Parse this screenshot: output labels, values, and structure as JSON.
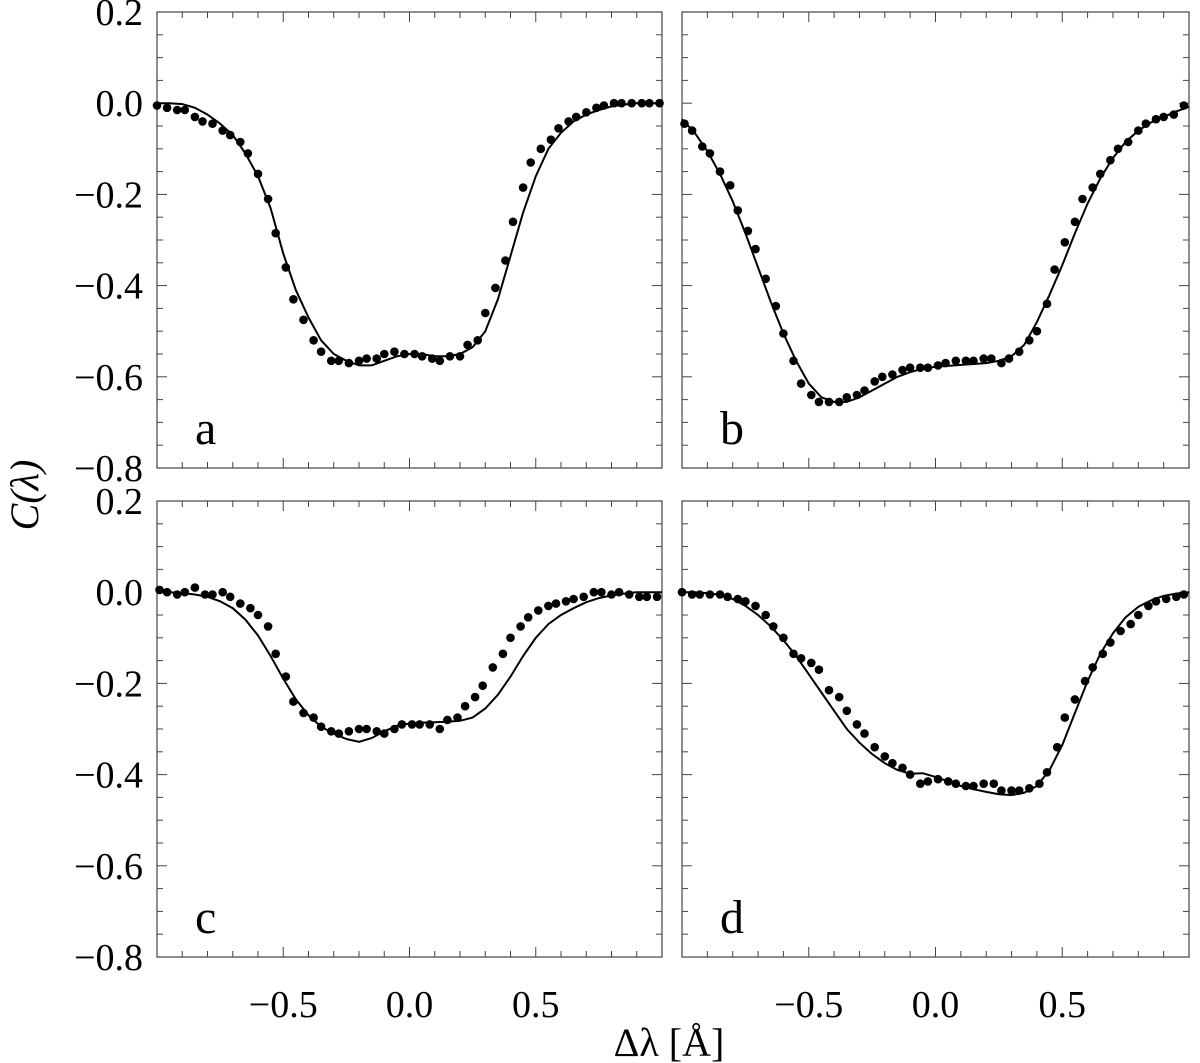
{
  "chart_data": {
    "type": "scatter",
    "xlabel": "Δλ [Å]",
    "ylabel": "C(λ)",
    "xlim": [
      -1.0,
      1.0
    ],
    "ylim": [
      -0.8,
      0.2
    ],
    "xticks": [
      {
        "value": -0.5,
        "label": "−0.5"
      },
      {
        "value": 0.0,
        "label": "0.0"
      },
      {
        "value": 0.5,
        "label": "0.5"
      }
    ],
    "yticks": [
      {
        "value": 0.2,
        "label": "0.2"
      },
      {
        "value": 0.0,
        "label": "0.0"
      },
      {
        "value": -0.2,
        "label": "−0.2"
      },
      {
        "value": -0.4,
        "label": "−0.4"
      },
      {
        "value": -0.6,
        "label": "−0.6"
      },
      {
        "value": -0.8,
        "label": "−0.8"
      }
    ],
    "grid": false,
    "legend": "none",
    "panels": [
      {
        "label": "a",
        "position": "top-left",
        "points": {
          "x": [
            -1.0,
            -0.96,
            -0.92,
            -0.89,
            -0.85,
            -0.82,
            -0.78,
            -0.74,
            -0.71,
            -0.67,
            -0.64,
            -0.6,
            -0.56,
            -0.53,
            -0.49,
            -0.46,
            -0.42,
            -0.38,
            -0.35,
            -0.31,
            -0.28,
            -0.24,
            -0.2,
            -0.17,
            -0.13,
            -0.1,
            -0.06,
            -0.02,
            0.02,
            0.05,
            0.09,
            0.12,
            0.16,
            0.2,
            0.23,
            0.27,
            0.3,
            0.34,
            0.38,
            0.41,
            0.45,
            0.48,
            0.52,
            0.56,
            0.59,
            0.63,
            0.66,
            0.7,
            0.74,
            0.77,
            0.81,
            0.84,
            0.88,
            0.92,
            0.95,
            0.99
          ],
          "y": [
            -0.005,
            -0.01,
            -0.015,
            -0.015,
            -0.03,
            -0.04,
            -0.045,
            -0.06,
            -0.07,
            -0.085,
            -0.11,
            -0.155,
            -0.21,
            -0.285,
            -0.36,
            -0.43,
            -0.475,
            -0.52,
            -0.545,
            -0.565,
            -0.565,
            -0.57,
            -0.565,
            -0.56,
            -0.56,
            -0.55,
            -0.545,
            -0.55,
            -0.55,
            -0.555,
            -0.56,
            -0.565,
            -0.555,
            -0.555,
            -0.53,
            -0.52,
            -0.46,
            -0.405,
            -0.345,
            -0.26,
            -0.185,
            -0.13,
            -0.1,
            -0.08,
            -0.055,
            -0.04,
            -0.03,
            -0.02,
            -0.01,
            -0.005,
            0.0,
            0.0,
            0.0,
            0.0,
            0.0,
            0.0
          ]
        },
        "curve": {
          "x": [
            -1.0,
            -0.95,
            -0.9,
            -0.85,
            -0.8,
            -0.75,
            -0.7,
            -0.65,
            -0.6,
            -0.55,
            -0.5,
            -0.45,
            -0.4,
            -0.35,
            -0.3,
            -0.25,
            -0.2,
            -0.15,
            -0.1,
            -0.05,
            0.0,
            0.05,
            0.1,
            0.15,
            0.2,
            0.25,
            0.3,
            0.35,
            0.4,
            0.45,
            0.5,
            0.55,
            0.6,
            0.65,
            0.7,
            0.75,
            0.8,
            0.85,
            0.9,
            0.95,
            1.0
          ],
          "y": [
            0.0,
            0.0,
            -0.002,
            -0.01,
            -0.025,
            -0.045,
            -0.07,
            -0.11,
            -0.16,
            -0.23,
            -0.33,
            -0.41,
            -0.47,
            -0.52,
            -0.55,
            -0.565,
            -0.575,
            -0.575,
            -0.565,
            -0.555,
            -0.55,
            -0.55,
            -0.555,
            -0.555,
            -0.55,
            -0.535,
            -0.5,
            -0.43,
            -0.335,
            -0.24,
            -0.16,
            -0.1,
            -0.065,
            -0.04,
            -0.025,
            -0.015,
            -0.007,
            -0.003,
            0.0,
            0.0,
            0.0
          ]
        }
      },
      {
        "label": "b",
        "position": "top-right",
        "points": {
          "x": [
            -0.99,
            -0.96,
            -0.92,
            -0.89,
            -0.85,
            -0.81,
            -0.78,
            -0.74,
            -0.71,
            -0.67,
            -0.63,
            -0.6,
            -0.56,
            -0.53,
            -0.49,
            -0.46,
            -0.42,
            -0.38,
            -0.35,
            -0.31,
            -0.28,
            -0.24,
            -0.21,
            -0.17,
            -0.13,
            -0.1,
            -0.06,
            -0.03,
            0.01,
            0.04,
            0.08,
            0.12,
            0.15,
            0.19,
            0.22,
            0.26,
            0.29,
            0.33,
            0.37,
            0.4,
            0.44,
            0.47,
            0.51,
            0.55,
            0.58,
            0.62,
            0.65,
            0.69,
            0.72,
            0.76,
            0.8,
            0.83,
            0.87,
            0.9,
            0.94,
            0.98
          ],
          "y": [
            -0.045,
            -0.06,
            -0.095,
            -0.11,
            -0.15,
            -0.18,
            -0.235,
            -0.28,
            -0.32,
            -0.385,
            -0.445,
            -0.505,
            -0.565,
            -0.615,
            -0.64,
            -0.655,
            -0.655,
            -0.655,
            -0.645,
            -0.64,
            -0.63,
            -0.61,
            -0.6,
            -0.595,
            -0.585,
            -0.58,
            -0.58,
            -0.58,
            -0.575,
            -0.57,
            -0.565,
            -0.565,
            -0.565,
            -0.56,
            -0.56,
            -0.57,
            -0.56,
            -0.545,
            -0.52,
            -0.5,
            -0.44,
            -0.365,
            -0.305,
            -0.26,
            -0.21,
            -0.185,
            -0.155,
            -0.125,
            -0.1,
            -0.085,
            -0.06,
            -0.045,
            -0.035,
            -0.03,
            -0.025,
            -0.005
          ]
        },
        "curve": {
          "x": [
            -1.0,
            -0.95,
            -0.9,
            -0.85,
            -0.8,
            -0.75,
            -0.7,
            -0.65,
            -0.6,
            -0.55,
            -0.5,
            -0.45,
            -0.4,
            -0.35,
            -0.3,
            -0.25,
            -0.2,
            -0.15,
            -0.1,
            -0.05,
            0.0,
            0.05,
            0.1,
            0.15,
            0.2,
            0.25,
            0.3,
            0.35,
            0.4,
            0.45,
            0.5,
            0.55,
            0.6,
            0.65,
            0.7,
            0.75,
            0.8,
            0.85,
            0.9,
            0.95,
            1.0
          ],
          "y": [
            -0.035,
            -0.065,
            -0.105,
            -0.155,
            -0.215,
            -0.285,
            -0.36,
            -0.435,
            -0.505,
            -0.565,
            -0.615,
            -0.645,
            -0.655,
            -0.655,
            -0.645,
            -0.63,
            -0.615,
            -0.6,
            -0.59,
            -0.582,
            -0.578,
            -0.576,
            -0.574,
            -0.572,
            -0.57,
            -0.565,
            -0.555,
            -0.53,
            -0.48,
            -0.42,
            -0.355,
            -0.285,
            -0.22,
            -0.165,
            -0.12,
            -0.085,
            -0.06,
            -0.042,
            -0.03,
            -0.018,
            -0.008
          ]
        }
      },
      {
        "label": "c",
        "position": "bottom-left",
        "points": {
          "x": [
            -0.99,
            -0.96,
            -0.92,
            -0.89,
            -0.85,
            -0.81,
            -0.78,
            -0.74,
            -0.71,
            -0.67,
            -0.63,
            -0.6,
            -0.56,
            -0.53,
            -0.49,
            -0.46,
            -0.42,
            -0.38,
            -0.35,
            -0.31,
            -0.28,
            -0.24,
            -0.2,
            -0.17,
            -0.13,
            -0.1,
            -0.06,
            -0.03,
            0.01,
            0.04,
            0.08,
            0.12,
            0.15,
            0.19,
            0.22,
            0.26,
            0.29,
            0.33,
            0.37,
            0.4,
            0.44,
            0.47,
            0.51,
            0.55,
            0.58,
            0.62,
            0.65,
            0.69,
            0.73,
            0.76,
            0.8,
            0.83,
            0.87,
            0.91,
            0.94,
            0.98
          ],
          "y": [
            0.005,
            0.0,
            -0.005,
            0.0,
            0.01,
            -0.005,
            -0.005,
            0.0,
            -0.01,
            -0.025,
            -0.035,
            -0.05,
            -0.075,
            -0.135,
            -0.185,
            -0.24,
            -0.265,
            -0.275,
            -0.295,
            -0.305,
            -0.31,
            -0.305,
            -0.3,
            -0.3,
            -0.305,
            -0.31,
            -0.3,
            -0.29,
            -0.29,
            -0.29,
            -0.29,
            -0.3,
            -0.28,
            -0.275,
            -0.25,
            -0.23,
            -0.205,
            -0.165,
            -0.135,
            -0.1,
            -0.075,
            -0.055,
            -0.04,
            -0.03,
            -0.025,
            -0.02,
            -0.015,
            -0.01,
            0.0,
            0.0,
            -0.005,
            0.0,
            -0.005,
            -0.01,
            -0.01,
            -0.01
          ]
        },
        "curve": {
          "x": [
            -1.0,
            -0.95,
            -0.9,
            -0.85,
            -0.8,
            -0.75,
            -0.7,
            -0.65,
            -0.6,
            -0.55,
            -0.5,
            -0.45,
            -0.4,
            -0.35,
            -0.3,
            -0.25,
            -0.2,
            -0.15,
            -0.1,
            -0.05,
            0.0,
            0.05,
            0.1,
            0.15,
            0.2,
            0.25,
            0.3,
            0.35,
            0.4,
            0.45,
            0.5,
            0.55,
            0.6,
            0.65,
            0.7,
            0.75,
            0.8,
            0.85,
            0.9,
            0.95,
            1.0
          ],
          "y": [
            0.0,
            0.0,
            -0.002,
            -0.005,
            -0.01,
            -0.02,
            -0.035,
            -0.06,
            -0.095,
            -0.14,
            -0.19,
            -0.235,
            -0.27,
            -0.295,
            -0.31,
            -0.322,
            -0.328,
            -0.32,
            -0.305,
            -0.293,
            -0.288,
            -0.286,
            -0.285,
            -0.284,
            -0.282,
            -0.275,
            -0.255,
            -0.225,
            -0.185,
            -0.14,
            -0.1,
            -0.07,
            -0.05,
            -0.035,
            -0.022,
            -0.013,
            -0.007,
            -0.003,
            0.0,
            0.0,
            0.0
          ]
        }
      },
      {
        "label": "d",
        "position": "bottom-right",
        "points": {
          "x": [
            -1.0,
            -0.96,
            -0.93,
            -0.89,
            -0.85,
            -0.82,
            -0.78,
            -0.75,
            -0.71,
            -0.67,
            -0.64,
            -0.6,
            -0.56,
            -0.53,
            -0.49,
            -0.46,
            -0.42,
            -0.38,
            -0.35,
            -0.31,
            -0.28,
            -0.24,
            -0.2,
            -0.17,
            -0.13,
            -0.1,
            -0.06,
            -0.03,
            0.01,
            0.05,
            0.08,
            0.12,
            0.15,
            0.19,
            0.23,
            0.26,
            0.3,
            0.33,
            0.37,
            0.41,
            0.44,
            0.48,
            0.51,
            0.55,
            0.59,
            0.62,
            0.66,
            0.69,
            0.73,
            0.77,
            0.8,
            0.84,
            0.87,
            0.91,
            0.95,
            0.98
          ],
          "y": [
            0.0,
            -0.005,
            -0.005,
            -0.005,
            -0.005,
            -0.01,
            -0.015,
            -0.02,
            -0.03,
            -0.05,
            -0.075,
            -0.1,
            -0.135,
            -0.145,
            -0.155,
            -0.17,
            -0.215,
            -0.23,
            -0.26,
            -0.29,
            -0.31,
            -0.34,
            -0.36,
            -0.375,
            -0.385,
            -0.4,
            -0.42,
            -0.415,
            -0.41,
            -0.415,
            -0.42,
            -0.425,
            -0.425,
            -0.42,
            -0.42,
            -0.435,
            -0.435,
            -0.435,
            -0.43,
            -0.42,
            -0.395,
            -0.34,
            -0.275,
            -0.235,
            -0.195,
            -0.165,
            -0.135,
            -0.11,
            -0.085,
            -0.07,
            -0.05,
            -0.03,
            -0.02,
            -0.015,
            -0.01,
            -0.005
          ]
        },
        "curve": {
          "x": [
            -1.0,
            -0.95,
            -0.9,
            -0.85,
            -0.8,
            -0.75,
            -0.7,
            -0.65,
            -0.6,
            -0.55,
            -0.5,
            -0.45,
            -0.4,
            -0.35,
            -0.3,
            -0.25,
            -0.2,
            -0.15,
            -0.1,
            -0.05,
            0.0,
            0.05,
            0.1,
            0.15,
            0.2,
            0.25,
            0.3,
            0.35,
            0.4,
            0.45,
            0.5,
            0.55,
            0.6,
            0.65,
            0.7,
            0.75,
            0.8,
            0.85,
            0.9,
            0.95,
            1.0
          ],
          "y": [
            0.0,
            0.0,
            -0.002,
            -0.006,
            -0.015,
            -0.03,
            -0.05,
            -0.075,
            -0.105,
            -0.14,
            -0.18,
            -0.22,
            -0.26,
            -0.3,
            -0.33,
            -0.355,
            -0.375,
            -0.39,
            -0.398,
            -0.397,
            -0.405,
            -0.415,
            -0.425,
            -0.432,
            -0.438,
            -0.443,
            -0.445,
            -0.44,
            -0.425,
            -0.39,
            -0.335,
            -0.265,
            -0.195,
            -0.135,
            -0.09,
            -0.055,
            -0.032,
            -0.018,
            -0.008,
            -0.003,
            0.0
          ]
        }
      }
    ]
  }
}
